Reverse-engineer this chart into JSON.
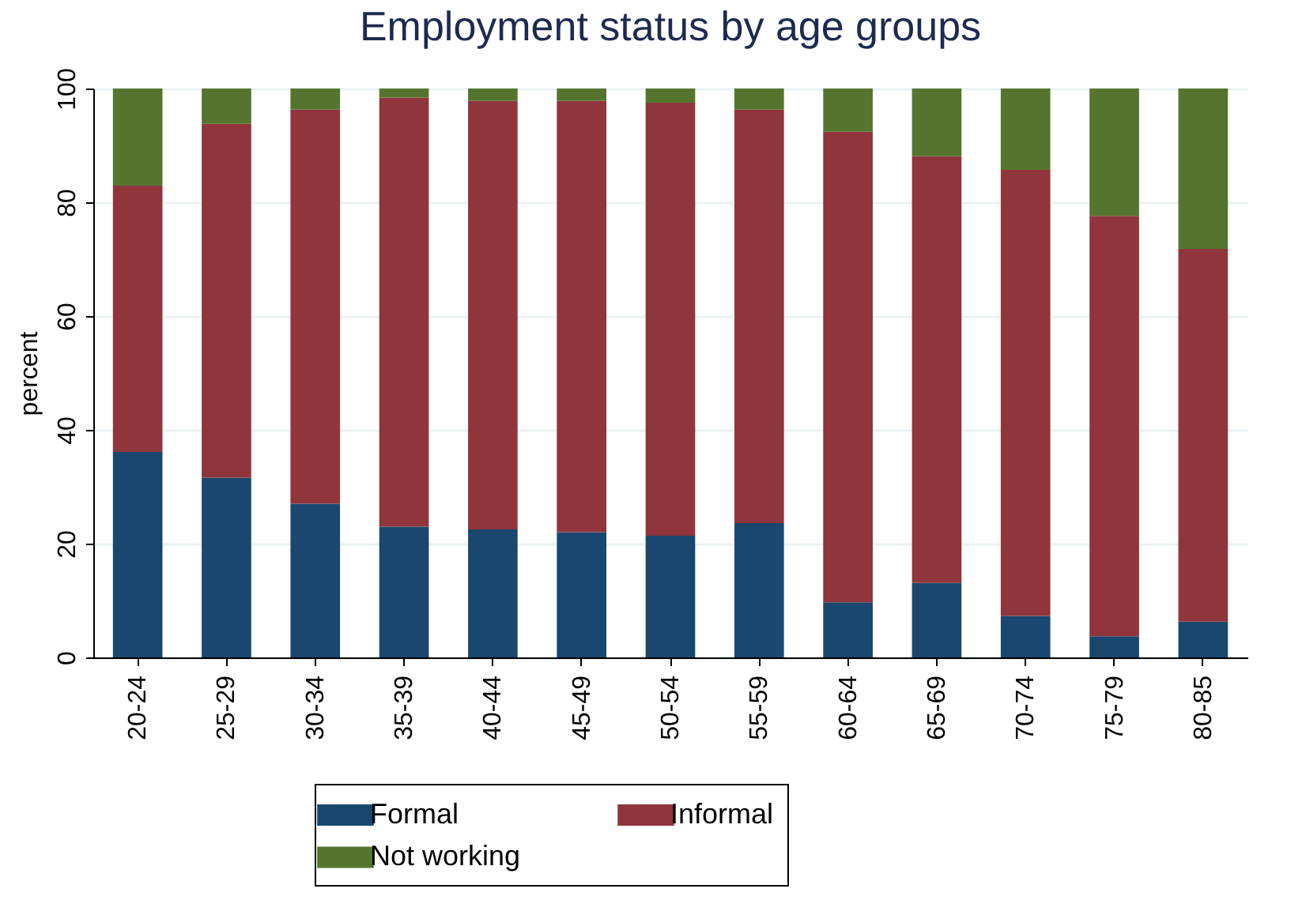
{
  "chart_data": {
    "type": "bar",
    "title": "Employment status by age groups",
    "ylabel": "percent",
    "categories": [
      "20-24",
      "25-29",
      "30-34",
      "35-39",
      "40-44",
      "45-49",
      "50-54",
      "55-59",
      "60-64",
      "65-69",
      "70-74",
      "75-79",
      "80-85"
    ],
    "series": [
      {
        "name": "Formal",
        "color": "#1a476f",
        "values": [
          36.1,
          31.6,
          27.0,
          23.0,
          22.5,
          22.0,
          21.4,
          23.6,
          9.7,
          13.1,
          7.3,
          3.7,
          6.3
        ]
      },
      {
        "name": "Informal",
        "color": "#90353b",
        "values": [
          46.8,
          62.2,
          69.3,
          75.4,
          75.3,
          75.8,
          76.1,
          72.7,
          82.7,
          75.0,
          78.4,
          73.9,
          65.5
        ]
      },
      {
        "name": "Not working",
        "color": "#55752f",
        "values": [
          17.1,
          6.2,
          3.7,
          1.6,
          2.2,
          2.2,
          2.5,
          3.7,
          7.6,
          11.9,
          14.3,
          22.4,
          28.2
        ]
      }
    ],
    "stacked": true,
    "ylim": [
      0,
      100
    ],
    "yticks": [
      0,
      20,
      40,
      60,
      80,
      100
    ],
    "grid": "y",
    "legend": "bottom"
  }
}
